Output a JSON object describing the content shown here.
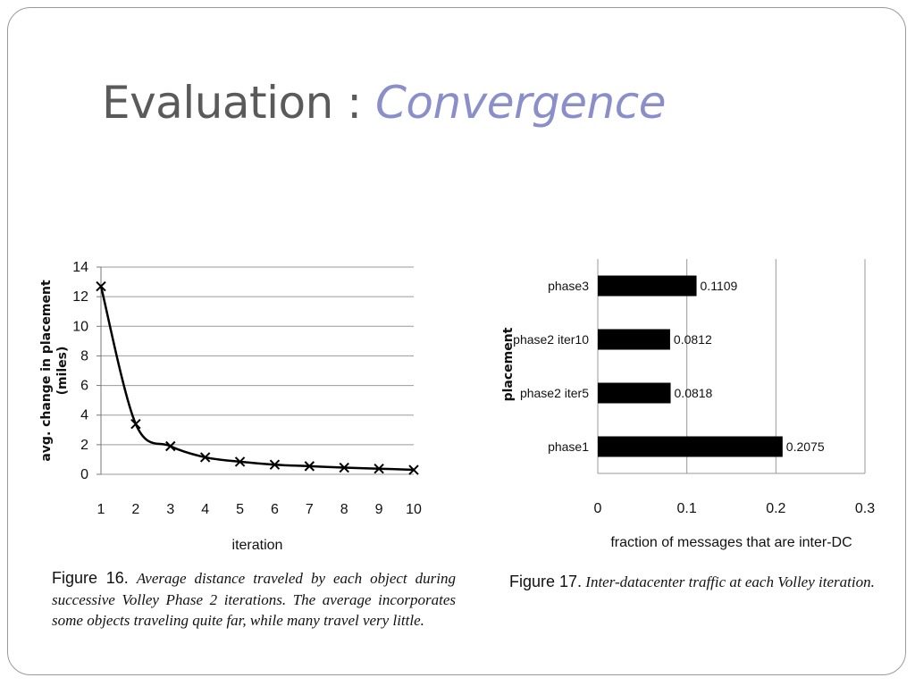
{
  "slide": {
    "title_plain": "Evaluation : ",
    "title_emphasis": "Convergence"
  },
  "figure16": {
    "caption_label": "Figure 16.",
    "caption_text": "Average distance traveled by each object during successive Volley Phase 2 iterations. The average incorporates some objects traveling quite far, while many travel very little."
  },
  "figure17": {
    "caption_label": "Figure 17.",
    "caption_text": "Inter-datacenter traffic at each Volley iteration."
  },
  "chart_data": [
    {
      "type": "line",
      "title": "",
      "xlabel": "iteration",
      "ylabel": "avg. change in placement (miles)",
      "x": [
        1,
        2,
        3,
        4,
        5,
        6,
        7,
        8,
        9,
        10
      ],
      "series": [
        {
          "values": [
            12.7,
            3.4,
            1.9,
            1.15,
            0.85,
            0.65,
            0.55,
            0.45,
            0.38,
            0.3
          ]
        }
      ],
      "xlim": [
        1,
        10
      ],
      "ylim": [
        0,
        14
      ],
      "yticks": [
        0,
        2,
        4,
        6,
        8,
        10,
        12,
        14
      ],
      "marker": "x",
      "grid": "horizontal",
      "line_color": "#000000"
    },
    {
      "type": "bar",
      "orientation": "horizontal",
      "title": "",
      "xlabel": "fraction of messages that are inter-DC",
      "ylabel": "placement",
      "categories": [
        "phase3",
        "phase2 iter10",
        "phase2 iter5",
        "phase1"
      ],
      "values": [
        0.1109,
        0.0812,
        0.0818,
        0.2075
      ],
      "value_labels": [
        "0.1109",
        "0.0812",
        "0.0818",
        "0.2075"
      ],
      "xlim": [
        0,
        0.3
      ],
      "xticks": [
        "0",
        "0.1",
        "0.2",
        "0.3"
      ],
      "grid": "vertical",
      "bar_color": "#000000"
    }
  ]
}
